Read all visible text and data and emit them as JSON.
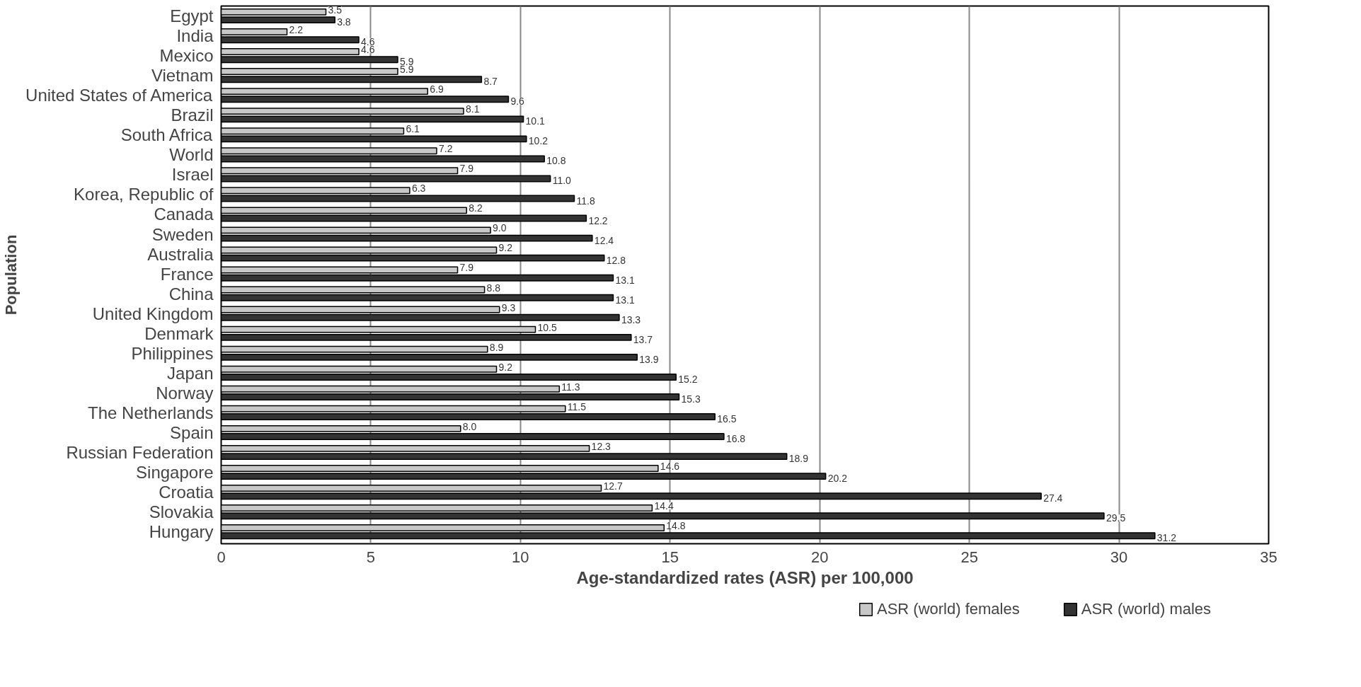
{
  "chart_data": {
    "type": "bar",
    "orientation": "horizontal",
    "xlabel": "Age-standardized rates (ASR) per 100,000",
    "ylabel": "Population",
    "categories": [
      "Egypt",
      "India",
      "Mexico",
      "Vietnam",
      "United States of America",
      "Brazil",
      "South Africa",
      "World",
      "Israel",
      "Korea, Republic of",
      "Canada",
      "Sweden",
      "Australia",
      "France",
      "China",
      "United Kingdom",
      "Denmark",
      "Philippines",
      "Japan",
      "Norway",
      "The Netherlands",
      "Spain",
      "Russian Federation",
      "Singapore",
      "Croatia",
      "Slovakia",
      "Hungary"
    ],
    "series": [
      {
        "name": "ASR (world) females",
        "color": "#c8c8c8",
        "values": [
          3.5,
          2.2,
          4.6,
          5.9,
          6.9,
          8.1,
          6.1,
          7.2,
          7.9,
          6.3,
          8.2,
          9.0,
          9.2,
          7.9,
          8.8,
          9.3,
          10.5,
          8.9,
          9.2,
          11.3,
          11.5,
          8.0,
          12.3,
          14.6,
          12.7,
          14.4,
          14.8
        ],
        "value_labels": [
          "3.5",
          "2.2",
          "4.6",
          "5.9",
          "6.9",
          "8.1",
          "6.1",
          "7.2",
          "7.9",
          "6.3",
          "8.2",
          "9.0",
          "9.2",
          "7.9",
          "8.8",
          "9.3",
          "10.5",
          "8.9",
          "9.2",
          "11.3",
          "11.5",
          "8.0",
          "12.3",
          "14.6",
          "12.7",
          "14.4",
          "14.8"
        ]
      },
      {
        "name": "ASR (world) males",
        "color": "#333333",
        "values": [
          3.8,
          4.6,
          5.9,
          8.7,
          9.6,
          10.1,
          10.2,
          10.8,
          11.0,
          11.8,
          12.2,
          12.4,
          12.8,
          13.1,
          13.1,
          13.3,
          13.7,
          13.9,
          15.2,
          15.3,
          16.5,
          16.8,
          18.9,
          20.2,
          27.4,
          29.5,
          31.2
        ],
        "value_labels": [
          "3.8",
          "4.6",
          "5.9",
          "8.7",
          "9.6",
          "10.1",
          "10.2",
          "10.8",
          "11.0",
          "11.8",
          "12.2",
          "12.4",
          "12.8",
          "13.1",
          "13.1",
          "13.3",
          "13.7",
          "13.9",
          "15.2",
          "15.3",
          "16.5",
          "16.8",
          "18.9",
          "20.2",
          "27.4",
          "29.5",
          "31.2"
        ]
      }
    ],
    "xlim": [
      0,
      35
    ],
    "xticks": [
      0,
      5,
      10,
      15,
      20,
      25,
      30,
      35
    ],
    "grid": "x",
    "legend": "bottom"
  }
}
